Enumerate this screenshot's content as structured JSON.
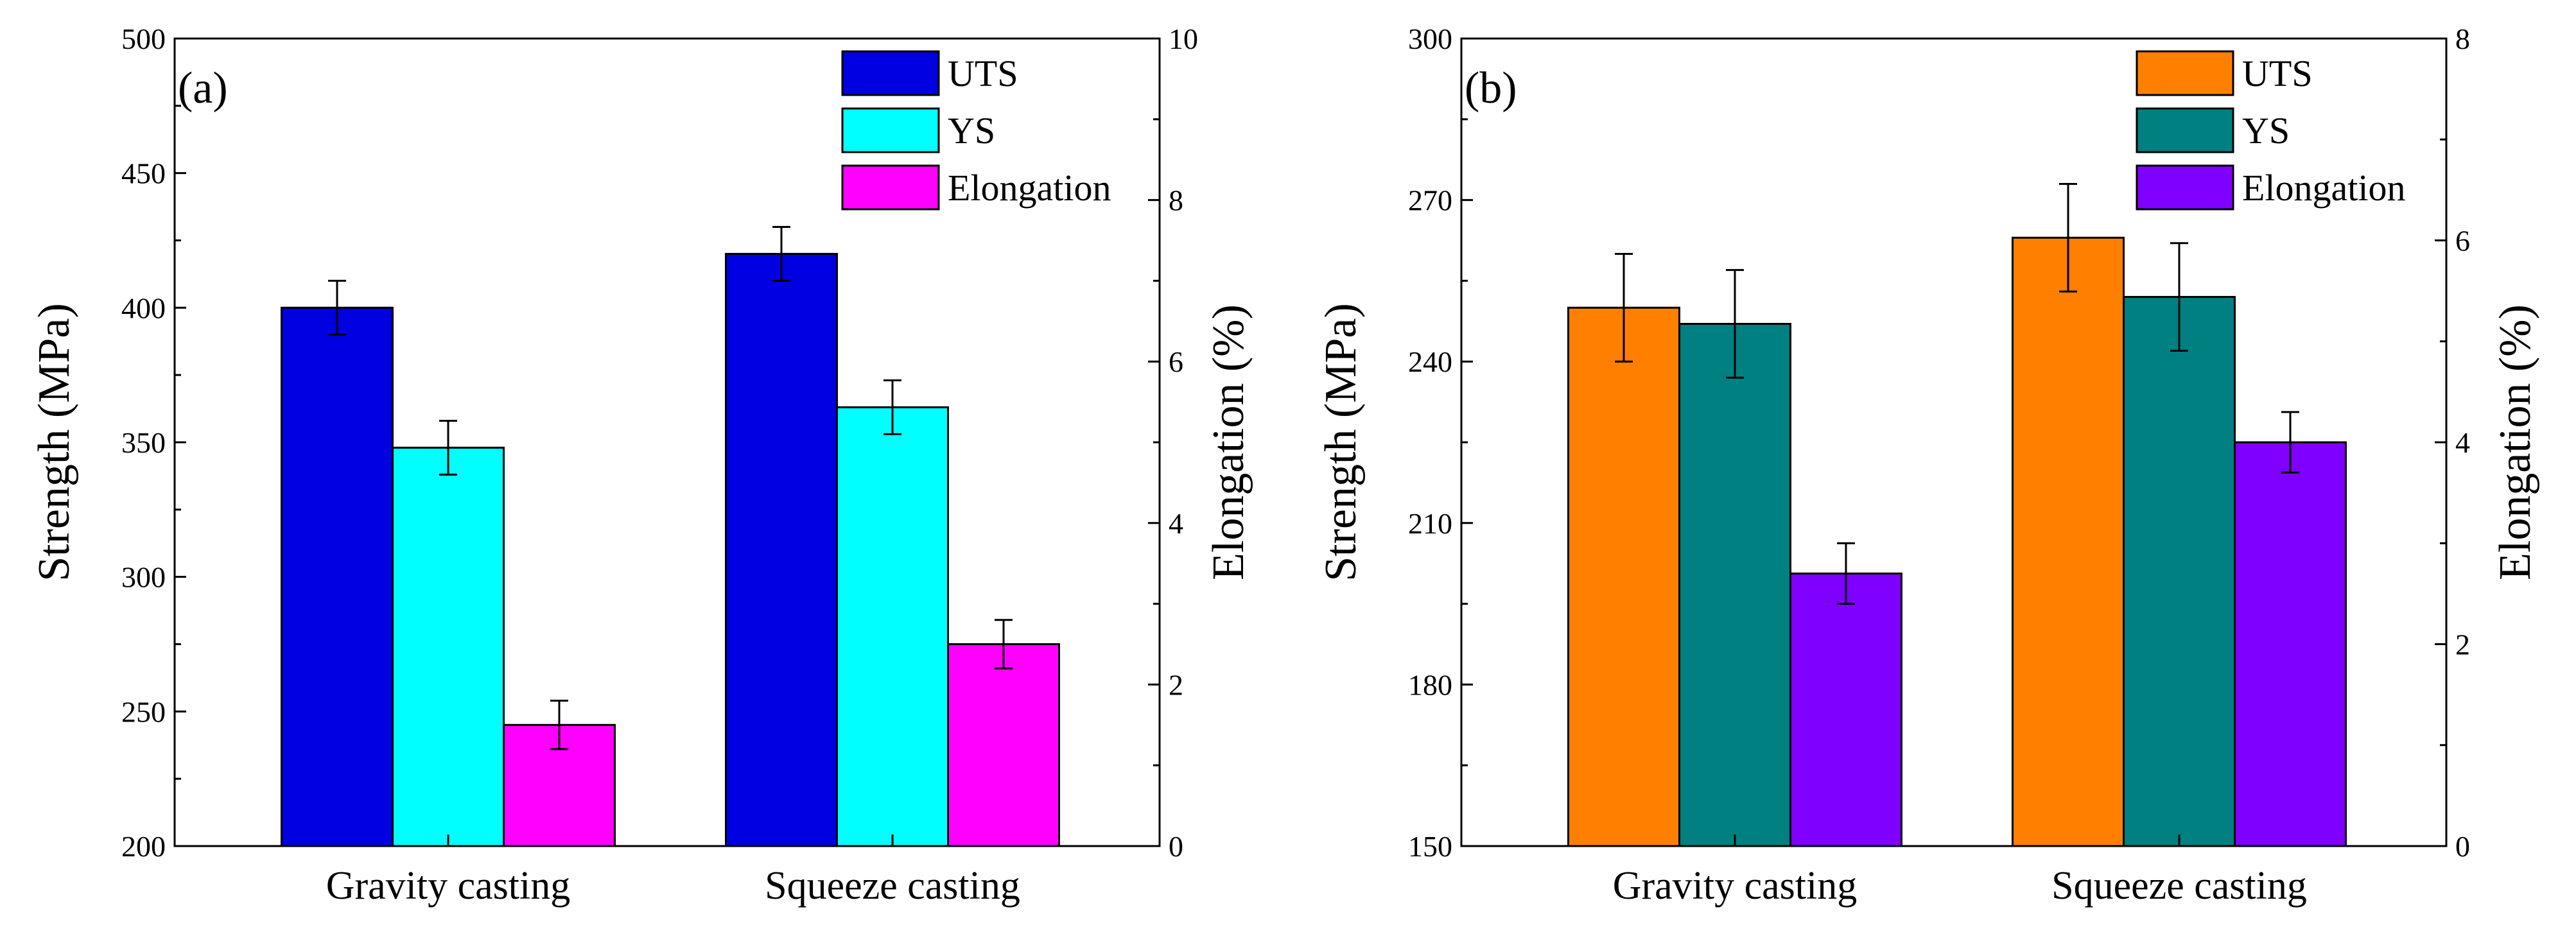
{
  "colors": {
    "uts_a": "#0000e0",
    "ys_a": "#00ffff",
    "elong_a": "#ff00ff",
    "uts_b": "#ff8000",
    "ys_b": "#008080",
    "elong_b": "#8000ff"
  },
  "chart_data": [
    {
      "type": "bar",
      "panel_label": "(a)",
      "categories": [
        "Gravity casting",
        "Squeeze casting"
      ],
      "ylabel": "Strength (MPa)",
      "y2label": "Elongation (%)",
      "ylim": [
        200,
        500
      ],
      "y2lim": [
        0,
        10
      ],
      "yticks": [
        200,
        250,
        300,
        350,
        400,
        450,
        500
      ],
      "y2ticks": [
        0,
        2,
        4,
        6,
        8,
        10
      ],
      "legend_position": "top-right",
      "series": [
        {
          "name": "UTS",
          "axis": "left",
          "color_key": "uts_a",
          "values": [
            400,
            420
          ],
          "errors": [
            10,
            10
          ]
        },
        {
          "name": "YS",
          "axis": "left",
          "color_key": "ys_a",
          "values": [
            348,
            363
          ],
          "errors": [
            10,
            10
          ]
        },
        {
          "name": "Elongation",
          "axis": "right",
          "color_key": "elong_a",
          "values": [
            1.5,
            2.5
          ],
          "errors": [
            0.3,
            0.3
          ]
        }
      ]
    },
    {
      "type": "bar",
      "panel_label": "(b)",
      "categories": [
        "Gravity casting",
        "Squeeze casting"
      ],
      "ylabel": "Strength (MPa)",
      "y2label": "Elongation (%)",
      "ylim": [
        150,
        300
      ],
      "y2lim": [
        0,
        8
      ],
      "yticks": [
        150,
        180,
        210,
        240,
        270,
        300
      ],
      "y2ticks": [
        0,
        2,
        4,
        6,
        8
      ],
      "legend_position": "top-right",
      "series": [
        {
          "name": "UTS",
          "axis": "left",
          "color_key": "uts_b",
          "values": [
            250,
            263
          ],
          "errors": [
            10,
            10
          ]
        },
        {
          "name": "YS",
          "axis": "left",
          "color_key": "ys_b",
          "values": [
            247,
            252
          ],
          "errors": [
            10,
            10
          ]
        },
        {
          "name": "Elongation",
          "axis": "right",
          "color_key": "elong_b",
          "values": [
            2.7,
            4.0
          ],
          "errors": [
            0.3,
            0.3
          ]
        }
      ]
    }
  ]
}
